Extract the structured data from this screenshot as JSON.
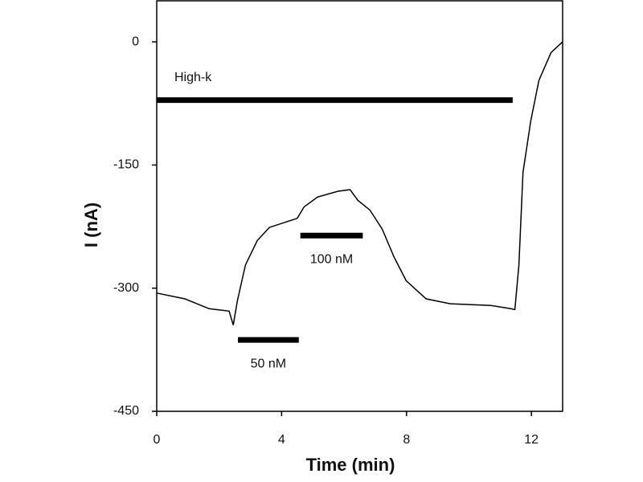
{
  "chart_data": {
    "type": "line",
    "x_label": "Time (min)",
    "y_label": "I (nA)",
    "xlim": [
      0,
      13
    ],
    "ylim": [
      -450,
      50
    ],
    "xticks": [
      0,
      4,
      8,
      12
    ],
    "yticks": [
      0,
      -150,
      -300,
      -450
    ],
    "color": "#000000",
    "x": [
      0,
      0.9,
      1.68,
      2.32,
      2.45,
      2.58,
      2.84,
      3.22,
      3.61,
      4.25,
      4.5,
      4.72,
      5.15,
      5.8,
      6.19,
      6.44,
      6.83,
      7.22,
      7.6,
      7.99,
      8.63,
      9.4,
      10.7,
      11.34,
      11.47,
      11.6,
      11.73,
      11.98,
      12.24,
      12.63,
      13.0
    ],
    "values": [
      -306,
      -313,
      -325,
      -328,
      -345,
      -316,
      -272,
      -242,
      -226,
      -218,
      -215,
      -201,
      -189,
      -182,
      -180,
      -193,
      -205,
      -228,
      -262,
      -291,
      -313,
      -319,
      -321,
      -325,
      -326,
      -272,
      -159,
      -96,
      -47,
      -13,
      0
    ],
    "annotations": [
      {
        "text": "High-k",
        "x": [
          0,
          11.4
        ],
        "y": -71
      },
      {
        "text": "50 nM",
        "x": [
          2.6,
          4.55
        ],
        "y": -363
      },
      {
        "text": "100 nM",
        "x": [
          4.6,
          6.6
        ],
        "y": -236
      }
    ]
  }
}
